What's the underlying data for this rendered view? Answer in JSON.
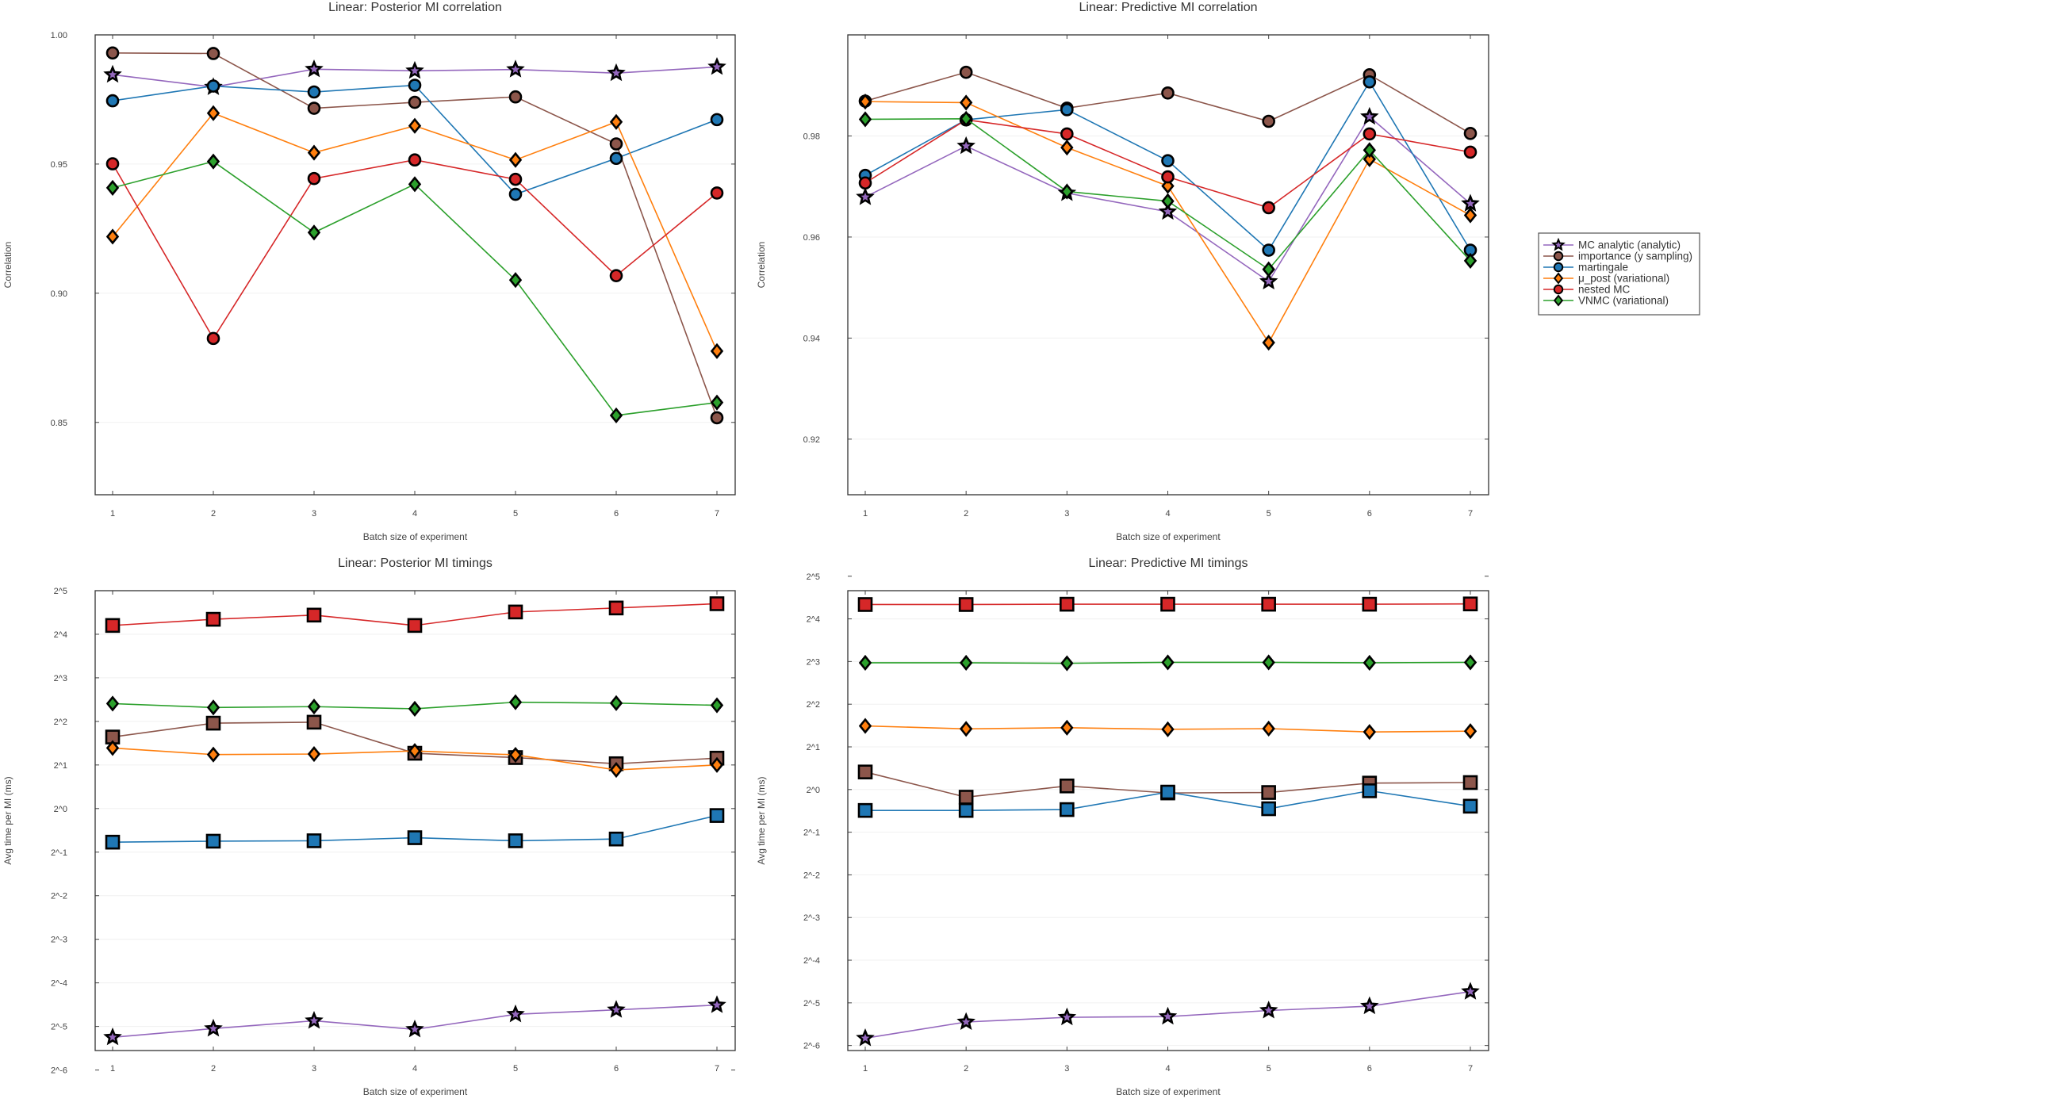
{
  "legend": {
    "placement": "right-of-top-right-chart",
    "entries": [
      {
        "name": "MC analytic (analytic)",
        "color": "#9467bd",
        "marker": "star"
      },
      {
        "name": "importance (y sampling)",
        "color": "#8c564b",
        "marker": "circle"
      },
      {
        "name": "martingale",
        "color": "#1f77b4",
        "marker": "circle"
      },
      {
        "name": "μ_post (variational)",
        "color": "#ff7f0e",
        "marker": "diamond"
      },
      {
        "name": "nested MC",
        "color": "#d62728",
        "marker": "circle"
      },
      {
        "name": "VNMC (variational)",
        "color": "#2ca02c",
        "marker": "diamond"
      }
    ]
  },
  "chart_data": [
    {
      "type": "line",
      "title": "Linear: Posterior MI correlation",
      "xlabel": "Batch size of experiment",
      "ylabel": "Correlation",
      "x": [
        1,
        2,
        3,
        4,
        5,
        6,
        7
      ],
      "yscale": "linear",
      "ylim": [
        0.822,
        1.0
      ],
      "yticks": [
        {
          "value": 0.85,
          "label": "0.85"
        },
        {
          "value": 0.9,
          "label": "0.90"
        },
        {
          "value": 0.95,
          "label": "0.95"
        },
        {
          "value": 1.0,
          "label": "1.00"
        }
      ],
      "grid": true,
      "series": [
        {
          "name": "MC analytic (analytic)",
          "color": "#9467bd",
          "marker": "star",
          "values": [
            0.9846,
            0.9798,
            0.9867,
            0.9861,
            0.9866,
            0.9852,
            0.9876
          ]
        },
        {
          "name": "importance (y sampling)",
          "color": "#8c564b",
          "marker": "circle",
          "values": [
            0.993,
            0.9928,
            0.9716,
            0.9739,
            0.976,
            0.9578,
            0.8518
          ]
        },
        {
          "name": "martingale",
          "color": "#1f77b4",
          "marker": "circle",
          "values": [
            0.9745,
            0.9802,
            0.9779,
            0.9805,
            0.9383,
            0.9522,
            0.9672
          ]
        },
        {
          "name": "μ_post (variational)",
          "color": "#ff7f0e",
          "marker": "diamond",
          "values": [
            0.9219,
            0.9697,
            0.9544,
            0.9648,
            0.9516,
            0.9663,
            0.8776
          ]
        },
        {
          "name": "nested MC",
          "color": "#d62728",
          "marker": "circle",
          "values": [
            0.9501,
            0.8825,
            0.9444,
            0.9516,
            0.9441,
            0.9068,
            0.9388
          ]
        },
        {
          "name": "VNMC (variational)",
          "color": "#2ca02c",
          "marker": "diamond",
          "values": [
            0.9408,
            0.951,
            0.9235,
            0.9422,
            0.9051,
            0.8527,
            0.8577
          ]
        }
      ]
    },
    {
      "type": "line",
      "title": "Linear: Predictive MI correlation",
      "xlabel": "Batch size of experiment",
      "ylabel": "Correlation",
      "x": [
        1,
        2,
        3,
        4,
        5,
        6,
        7
      ],
      "yscale": "linear",
      "ylim": [
        0.909,
        1.0
      ],
      "yticks": [
        {
          "value": 0.92,
          "label": "0.92"
        },
        {
          "value": 0.94,
          "label": "0.94"
        },
        {
          "value": 0.96,
          "label": "0.96"
        },
        {
          "value": 0.98,
          "label": "0.98"
        }
      ],
      "grid": true,
      "series": [
        {
          "name": "MC analytic (analytic)",
          "color": "#9467bd",
          "marker": "star",
          "values": [
            0.9679,
            0.978,
            0.9687,
            0.965,
            0.9512,
            0.9838,
            0.9666
          ]
        },
        {
          "name": "importance (y sampling)",
          "color": "#8c564b",
          "marker": "circle",
          "values": [
            0.9869,
            0.9926,
            0.9855,
            0.9885,
            0.9829,
            0.9921,
            0.9805
          ]
        },
        {
          "name": "martingale",
          "color": "#1f77b4",
          "marker": "circle",
          "values": [
            0.9722,
            0.9832,
            0.9852,
            0.9751,
            0.9574,
            0.9907,
            0.9574
          ]
        },
        {
          "name": "μ_post (variational)",
          "color": "#ff7f0e",
          "marker": "diamond",
          "values": [
            0.9868,
            0.9866,
            0.9777,
            0.9701,
            0.9391,
            0.9754,
            0.9643
          ]
        },
        {
          "name": "nested MC",
          "color": "#d62728",
          "marker": "circle",
          "values": [
            0.9707,
            0.9832,
            0.9804,
            0.9719,
            0.9658,
            0.9804,
            0.9768
          ]
        },
        {
          "name": "VNMC (variational)",
          "color": "#2ca02c",
          "marker": "diamond",
          "values": [
            0.9833,
            0.9834,
            0.969,
            0.9671,
            0.9536,
            0.9772,
            0.9553
          ]
        }
      ]
    },
    {
      "type": "line",
      "title": "Linear: Posterior MI timings",
      "xlabel": "Batch size of experiment",
      "ylabel": "Avg time per MI (ms)",
      "x": [
        1,
        2,
        3,
        4,
        5,
        6,
        7
      ],
      "yscale": "log2",
      "ylim": [
        0.0213,
        32
      ],
      "yticks": [
        {
          "value": 0.015625,
          "label": "2^-6"
        },
        {
          "value": 0.03125,
          "label": "2^-5"
        },
        {
          "value": 0.0625,
          "label": "2^-4"
        },
        {
          "value": 0.125,
          "label": "2^-3"
        },
        {
          "value": 0.25,
          "label": "2^-2"
        },
        {
          "value": 0.5,
          "label": "2^-1"
        },
        {
          "value": 1,
          "label": "2^0"
        },
        {
          "value": 2,
          "label": "2^1"
        },
        {
          "value": 4,
          "label": "2^2"
        },
        {
          "value": 8,
          "label": "2^3"
        },
        {
          "value": 16,
          "label": "2^4"
        },
        {
          "value": 32,
          "label": "2^5"
        }
      ],
      "grid": true,
      "series": [
        {
          "name": "MC analytic (analytic)",
          "color": "#9467bd",
          "marker": "star",
          "values": [
            0.0263,
            0.0302,
            0.0342,
            0.0298,
            0.0379,
            0.0407,
            0.0439
          ]
        },
        {
          "name": "importance (y sampling)",
          "color": "#8c564b",
          "marker": "square",
          "values": [
            3.12,
            3.89,
            3.95,
            2.41,
            2.25,
            2.04,
            2.23
          ]
        },
        {
          "name": "martingale",
          "color": "#1f77b4",
          "marker": "square",
          "values": [
            0.586,
            0.595,
            0.599,
            0.629,
            0.599,
            0.616,
            0.895
          ]
        },
        {
          "name": "μ_post (variational)",
          "color": "#ff7f0e",
          "marker": "diamond",
          "values": [
            2.62,
            2.36,
            2.38,
            2.5,
            2.35,
            1.85,
            2.0
          ]
        },
        {
          "name": "nested MC",
          "color": "#d62728",
          "marker": "square",
          "values": [
            18.4,
            20.3,
            21.7,
            18.4,
            22.8,
            24.3,
            26.0
          ]
        },
        {
          "name": "VNMC (variational)",
          "color": "#2ca02c",
          "marker": "diamond",
          "values": [
            5.31,
            4.99,
            5.06,
            4.89,
            5.43,
            5.35,
            5.17
          ]
        }
      ]
    },
    {
      "type": "line",
      "title": "Linear: Predictive MI timings",
      "xlabel": "Batch size of experiment",
      "ylabel": "Avg time per MI (ms)",
      "x": [
        1,
        2,
        3,
        4,
        5,
        6,
        7
      ],
      "yscale": "log2",
      "ylim": [
        0.0144,
        25.3
      ],
      "yticks": [
        {
          "value": 0.015625,
          "label": "2^-6"
        },
        {
          "value": 0.03125,
          "label": "2^-5"
        },
        {
          "value": 0.0625,
          "label": "2^-4"
        },
        {
          "value": 0.125,
          "label": "2^-3"
        },
        {
          "value": 0.25,
          "label": "2^-2"
        },
        {
          "value": 0.5,
          "label": "2^-1"
        },
        {
          "value": 1,
          "label": "2^0"
        },
        {
          "value": 2,
          "label": "2^1"
        },
        {
          "value": 4,
          "label": "2^2"
        },
        {
          "value": 8,
          "label": "2^3"
        },
        {
          "value": 16,
          "label": "2^4"
        },
        {
          "value": 32,
          "label": "2^5"
        }
      ],
      "grid": true,
      "series": [
        {
          "name": "MC analytic (analytic)",
          "color": "#9467bd",
          "marker": "star",
          "values": [
            0.0176,
            0.0229,
            0.0247,
            0.025,
            0.0276,
            0.0296,
            0.0375
          ]
        },
        {
          "name": "importance (y sampling)",
          "color": "#8c564b",
          "marker": "square",
          "values": [
            1.33,
            0.883,
            1.06,
            0.946,
            0.953,
            1.11,
            1.12
          ]
        },
        {
          "name": "martingale",
          "color": "#1f77b4",
          "marker": "square",
          "values": [
            0.712,
            0.712,
            0.722,
            0.959,
            0.732,
            0.98,
            0.763
          ]
        },
        {
          "name": "μ_post (variational)",
          "color": "#ff7f0e",
          "marker": "diamond",
          "values": [
            2.81,
            2.68,
            2.73,
            2.66,
            2.69,
            2.55,
            2.58
          ]
        },
        {
          "name": "nested MC",
          "color": "#d62728",
          "marker": "square",
          "values": [
            20.2,
            20.2,
            20.3,
            20.3,
            20.3,
            20.3,
            20.4
          ]
        },
        {
          "name": "VNMC (variational)",
          "color": "#2ca02c",
          "marker": "diamond",
          "values": [
            7.84,
            7.84,
            7.78,
            7.89,
            7.89,
            7.84,
            7.89
          ]
        }
      ]
    }
  ]
}
